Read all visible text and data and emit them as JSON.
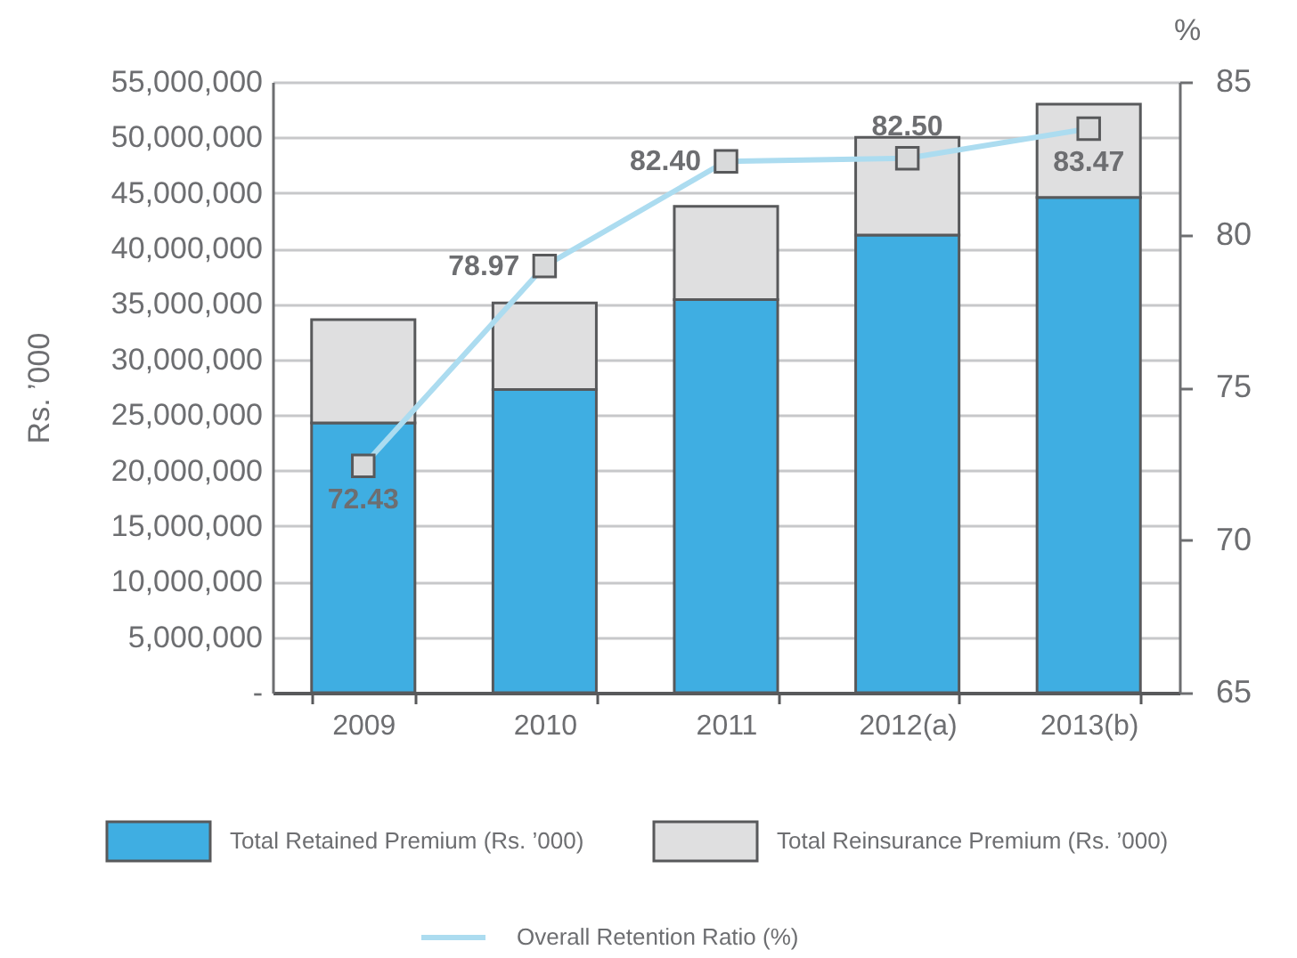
{
  "chart_data": {
    "type": "bar",
    "stacked": true,
    "categories": [
      "2009",
      "2010",
      "2011",
      "2012(a)",
      "2013(b)"
    ],
    "series": [
      {
        "name": "Total Retained Premium (Rs. ’000)",
        "color": "#3faee2",
        "values": [
          24300000,
          27300000,
          35400000,
          41200000,
          44600000
        ]
      },
      {
        "name": "Total Reinsurance Premium (Rs. ’000)",
        "color": "#dfdfe0",
        "values": [
          9300000,
          7800000,
          8400000,
          8800000,
          8400000
        ]
      },
      {
        "name": "Overall Retention Ratio (%)",
        "type": "line",
        "axis": "y2",
        "color": "#acdcf0",
        "marker": "square",
        "values": [
          72.43,
          78.97,
          82.4,
          82.5,
          83.47
        ],
        "value_labels": [
          "72.43",
          "78.97",
          "82.40",
          "82.50",
          "83.47"
        ]
      }
    ],
    "ylabel": "Rs. ’000",
    "y2label": "%",
    "ylim": [
      0,
      55000000
    ],
    "yticks": [
      {
        "value": 0,
        "label": "-"
      },
      {
        "value": 5000000,
        "label": "5,000,000"
      },
      {
        "value": 10000000,
        "label": "10,000,000"
      },
      {
        "value": 15000000,
        "label": "15,000,000"
      },
      {
        "value": 20000000,
        "label": "20,000,000"
      },
      {
        "value": 25000000,
        "label": "25,000,000"
      },
      {
        "value": 30000000,
        "label": "30,000,000"
      },
      {
        "value": 35000000,
        "label": "35,000,000"
      },
      {
        "value": 40000000,
        "label": "40,000,000"
      },
      {
        "value": 45000000,
        "label": "45,000,000"
      },
      {
        "value": 50000000,
        "label": "50,000,000"
      },
      {
        "value": 55000000,
        "label": "55,000,000"
      }
    ],
    "y2lim": [
      65,
      85
    ],
    "y2ticks": [
      65,
      70,
      75,
      80,
      85
    ],
    "grid": "y",
    "legend": "bottom"
  }
}
